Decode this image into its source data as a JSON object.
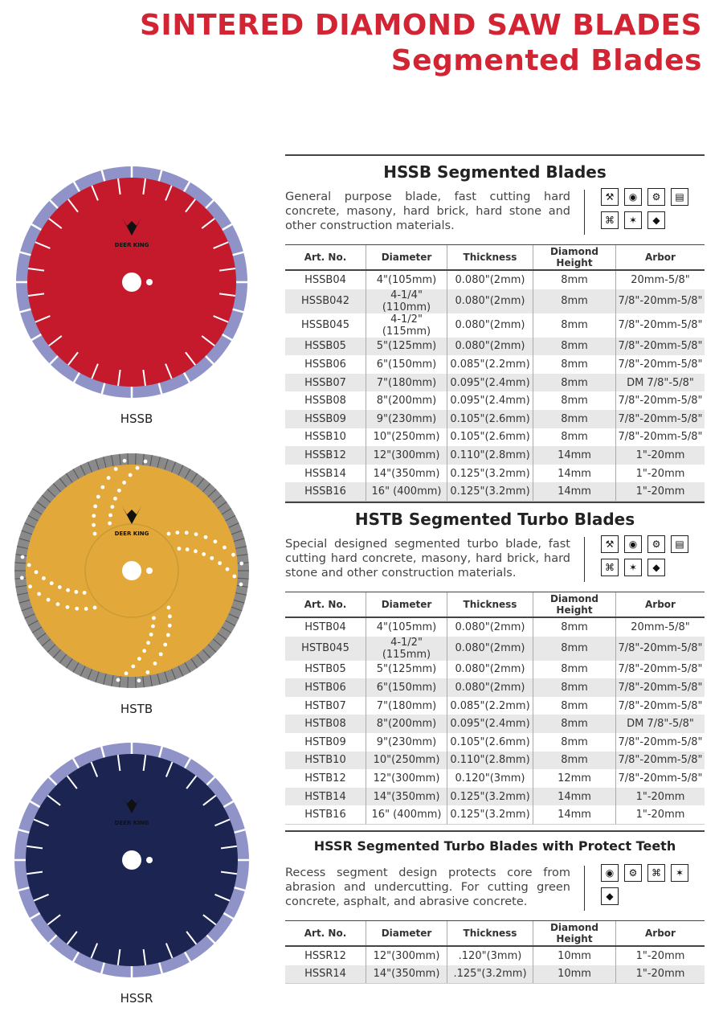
{
  "header": {
    "title_line1": "SINTERED DIAMOND SAW BLADES",
    "title_line2": "Segmented Blades"
  },
  "colors": {
    "title_red": "#d32434",
    "hssb_blade": "#c41a2c",
    "hstb_blade": "#e2a93a",
    "hssr_blade": "#1c2452"
  },
  "blades": [
    {
      "label": "HSSB",
      "brand": "DEER KING"
    },
    {
      "label": "HSTB",
      "brand": "DEER KING"
    },
    {
      "label": "HSSR",
      "brand": "DEER KING"
    }
  ],
  "columns": [
    "Art. No.",
    "Diameter",
    "Thickness",
    "Diamond Height",
    "Arbor"
  ],
  "sections": [
    {
      "title": "HSSB Segmented Blades",
      "description": "General purpose blade, fast cutting hard concrete, masony, hard brick, hard stone and other construction materials.",
      "icons": [
        "hand-saw-icon",
        "eye-protection-icon",
        "cutting-machine-icon",
        "wall-saw-icon",
        "floor-saw-icon",
        "wet-cut-icon",
        "water-drop-icon"
      ],
      "rows": [
        [
          "HSSB04",
          "4\"(105mm)",
          "0.080\"(2mm)",
          "8mm",
          "20mm-5/8\""
        ],
        [
          "HSSB042",
          "4-1/4\"(110mm)",
          "0.080\"(2mm)",
          "8mm",
          "7/8\"-20mm-5/8\""
        ],
        [
          "HSSB045",
          "4-1/2\"(115mm)",
          "0.080\"(2mm)",
          "8mm",
          "7/8\"-20mm-5/8\""
        ],
        [
          "HSSB05",
          "5\"(125mm)",
          "0.080\"(2mm)",
          "8mm",
          "7/8\"-20mm-5/8\""
        ],
        [
          "HSSB06",
          "6\"(150mm)",
          "0.085\"(2.2mm)",
          "8mm",
          "7/8\"-20mm-5/8\""
        ],
        [
          "HSSB07",
          "7\"(180mm)",
          "0.095\"(2.4mm)",
          "8mm",
          "DM 7/8\"-5/8\""
        ],
        [
          "HSSB08",
          "8\"(200mm)",
          "0.095\"(2.4mm)",
          "8mm",
          "7/8\"-20mm-5/8\""
        ],
        [
          "HSSB09",
          "9\"(230mm)",
          "0.105\"(2.6mm)",
          "8mm",
          "7/8\"-20mm-5/8\""
        ],
        [
          "HSSB10",
          "10\"(250mm)",
          "0.105\"(2.6mm)",
          "8mm",
          "7/8\"-20mm-5/8\""
        ],
        [
          "HSSB12",
          "12\"(300mm)",
          "0.110\"(2.8mm)",
          "14mm",
          "1\"-20mm"
        ],
        [
          "HSSB14",
          "14\"(350mm)",
          "0.125\"(3.2mm)",
          "14mm",
          "1\"-20mm"
        ],
        [
          "HSSB16",
          "16\" (400mm)",
          "0.125\"(3.2mm)",
          "14mm",
          "1\"-20mm"
        ]
      ]
    },
    {
      "title": "HSTB Segmented Turbo Blades",
      "description": "Special designed segmented turbo blade, fast cutting hard concrete, masony, hard brick, hard stone and other construction materials.",
      "icons": [
        "hand-saw-icon",
        "eye-protection-icon",
        "cutting-machine-icon",
        "wall-saw-icon",
        "floor-saw-icon",
        "wet-cut-icon",
        "water-drop-icon"
      ],
      "rows": [
        [
          "HSTB04",
          "4\"(105mm)",
          "0.080\"(2mm)",
          "8mm",
          "20mm-5/8\""
        ],
        [
          "HSTB045",
          "4-1/2\"(115mm)",
          "0.080\"(2mm)",
          "8mm",
          "7/8\"-20mm-5/8\""
        ],
        [
          "HSTB05",
          "5\"(125mm)",
          "0.080\"(2mm)",
          "8mm",
          "7/8\"-20mm-5/8\""
        ],
        [
          "HSTB06",
          "6\"(150mm)",
          "0.080\"(2mm)",
          "8mm",
          "7/8\"-20mm-5/8\""
        ],
        [
          "HSTB07",
          "7\"(180mm)",
          "0.085\"(2.2mm)",
          "8mm",
          "7/8\"-20mm-5/8\""
        ],
        [
          "HSTB08",
          "8\"(200mm)",
          "0.095\"(2.4mm)",
          "8mm",
          "DM 7/8\"-5/8\""
        ],
        [
          "HSTB09",
          "9\"(230mm)",
          "0.105\"(2.6mm)",
          "8mm",
          "7/8\"-20mm-5/8\""
        ],
        [
          "HSTB10",
          "10\"(250mm)",
          "0.110\"(2.8mm)",
          "8mm",
          "7/8\"-20mm-5/8\""
        ],
        [
          "HSTB12",
          "12\"(300mm)",
          "0.120\"(3mm)",
          "12mm",
          "7/8\"-20mm-5/8\""
        ],
        [
          "HSTB14",
          "14\"(350mm)",
          "0.125\"(3.2mm)",
          "14mm",
          "1\"-20mm"
        ],
        [
          "HSTB16",
          "16\" (400mm)",
          "0.125\"(3.2mm)",
          "14mm",
          "1\"-20mm"
        ]
      ]
    },
    {
      "title": "HSSR Segmented Turbo Blades with Protect Teeth",
      "description": "Recess segment design protects core from abrasion and undercutting. For cutting green concrete, asphalt, and abrasive concrete.",
      "icons": [
        "eye-protection-icon",
        "cutting-machine-icon",
        "floor-saw-icon",
        "wet-cut-icon",
        "water-drop-icon"
      ],
      "rows": [
        [
          "HSSR12",
          "12\"(300mm)",
          ".120\"(3mm)",
          "10mm",
          "1\"-20mm"
        ],
        [
          "HSSR14",
          "14\"(350mm)",
          ".125\"(3.2mm)",
          "10mm",
          "1\"-20mm"
        ]
      ]
    }
  ]
}
